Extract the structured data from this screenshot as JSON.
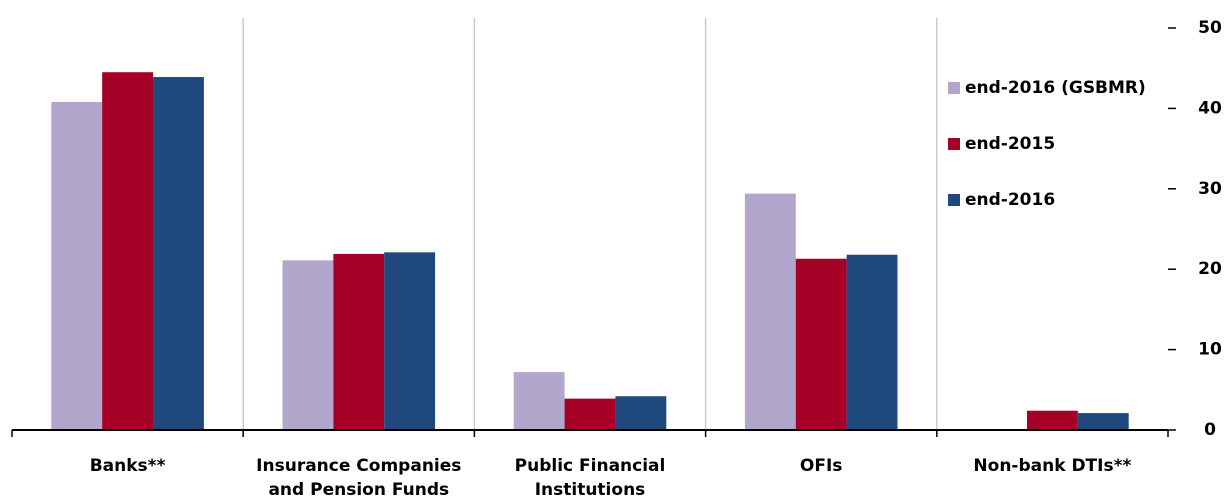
{
  "chart_data": {
    "type": "bar",
    "categories": [
      "Banks**",
      "Insurance Companies and Pension Funds",
      "Public Financial Institutions",
      "OFIs",
      "Non-bank DTIs**"
    ],
    "series": [
      {
        "name": "end-2016 (GSBMR)",
        "color": "#b3a6cc",
        "values": [
          40.8,
          21.1,
          7.2,
          29.4,
          null
        ]
      },
      {
        "name": "end-2015",
        "color": "#a50026",
        "values": [
          44.5,
          21.9,
          3.9,
          21.3,
          2.4
        ]
      },
      {
        "name": "end-2016",
        "color": "#1f497d",
        "values": [
          43.9,
          22.1,
          4.2,
          21.8,
          2.1
        ]
      }
    ],
    "ylim": [
      0,
      50
    ],
    "yticks": [
      0,
      10,
      20,
      30,
      40,
      50
    ],
    "grid": true
  }
}
